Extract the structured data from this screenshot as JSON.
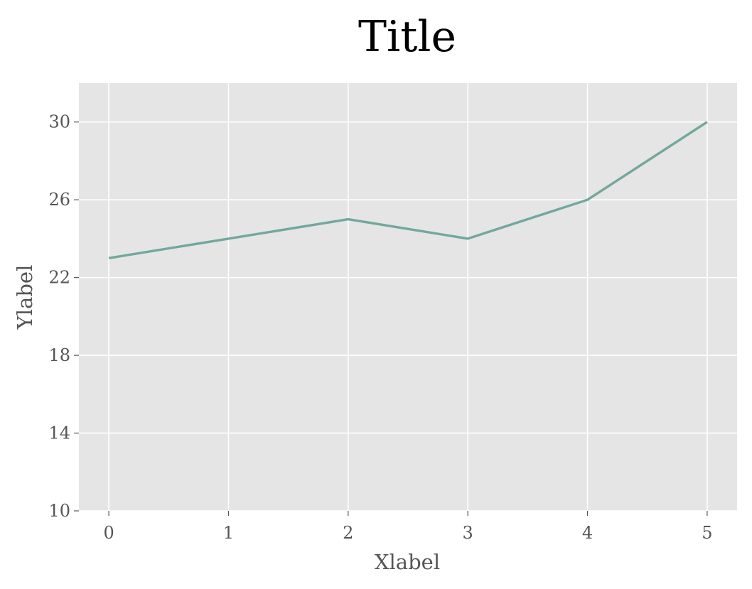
{
  "chart_data": {
    "type": "line",
    "title": "Title",
    "xlabel": "Xlabel",
    "ylabel": "Ylabel",
    "x": [
      0,
      1,
      2,
      3,
      4,
      5
    ],
    "series": [
      {
        "values": [
          23,
          24,
          25,
          24,
          26,
          30
        ]
      }
    ],
    "xlim": [
      -0.25,
      5.25
    ],
    "ylim": [
      10,
      32
    ],
    "xticks": [
      0,
      1,
      2,
      3,
      4,
      5
    ],
    "yticks": [
      10,
      14,
      18,
      22,
      26,
      30
    ],
    "grid": true,
    "legend": "none",
    "colors": {
      "background": "#e5e5e5",
      "grid": "#ffffff",
      "line": "#72a89c",
      "tick": "#555555",
      "title": "#000000"
    }
  }
}
